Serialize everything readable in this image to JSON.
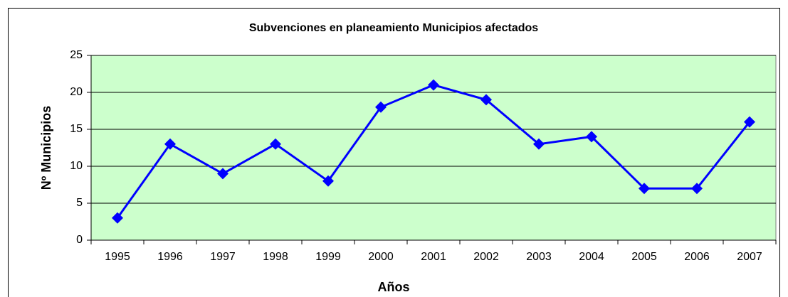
{
  "chart_data": {
    "type": "line",
    "title": "Subvenciones en planeamiento  Municipios afectados",
    "x_label": "Años",
    "y_label": "Nº Municipios",
    "categories": [
      "1995",
      "1996",
      "1997",
      "1998",
      "1999",
      "2000",
      "2001",
      "2002",
      "2003",
      "2004",
      "2005",
      "2006",
      "2007"
    ],
    "values": [
      3,
      13,
      9,
      13,
      8,
      18,
      21,
      19,
      13,
      14,
      7,
      7,
      16
    ],
    "color": "#0000ff",
    "background": "#ccffcc",
    "ylim": [
      0,
      25
    ],
    "yticks": [
      0,
      5,
      10,
      15,
      20,
      25
    ],
    "grid": true
  }
}
